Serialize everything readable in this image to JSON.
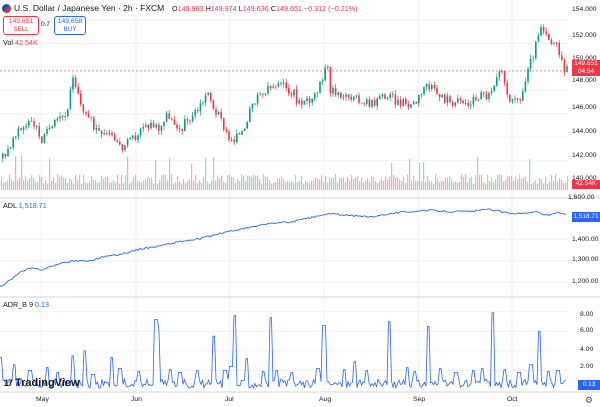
{
  "header": {
    "symbol_title": "U.S. Dollar / Japanese Yen · 2h · FXCM",
    "ohlc": {
      "o_key": "O",
      "o_val": "149.963",
      "h_key": "H",
      "h_val": "149.974",
      "l_key": "L",
      "l_val": "149.636",
      "c_key": "C",
      "c_val": "149.651",
      "change": "−0.312 (−0.21%)"
    },
    "sell": {
      "price": "149.651",
      "label": "SELL"
    },
    "buy": {
      "price": "149.658",
      "label": "BUY"
    },
    "spread": "0.7",
    "volume_label": "Vol",
    "volume_value": "42.54K"
  },
  "panes": {
    "adl": {
      "name": "ADL",
      "value": "1,518.71"
    },
    "adr": {
      "name": "ADR_B 9",
      "value": "0.13"
    }
  },
  "price_axis": {
    "ticks": [
      "154.000",
      "152.000",
      "150.000",
      "148.000",
      "146.000",
      "144.000",
      "142.000",
      "140.000",
      "1,600.00"
    ],
    "last_price": "149.651",
    "countdown": "04:54",
    "volume_tag": "42.54K"
  },
  "adl_axis": {
    "ticks": [
      "1,400.00",
      "1,300.00",
      "1,200.00"
    ],
    "tag": "1,518.71"
  },
  "adr_axis": {
    "ticks": [
      "8.00",
      "6.00",
      "4.00",
      "2.00"
    ],
    "tag": "0.13"
  },
  "time_axis": {
    "labels": [
      "May",
      "Jun",
      "Jul",
      "Aug",
      "Sep",
      "Oct"
    ]
  },
  "branding": {
    "logo_text": "TradingView",
    "logo_mark": "17"
  },
  "colors": {
    "up": "#089981",
    "down": "#f23645",
    "line": "#2962ff",
    "grid": "#eef0f3"
  },
  "chart_data": {
    "type": "candlestick",
    "price_ylim": [
      139.5,
      154.5
    ],
    "adl_ylim": [
      1150,
      1560
    ],
    "adr_ylim": [
      0,
      9
    ],
    "x_labels": [
      "May",
      "Jun",
      "Jul",
      "Aug",
      "Sep",
      "Oct"
    ],
    "price_trend": [
      [
        0,
        142.2
      ],
      [
        10,
        143.4
      ],
      [
        20,
        144.6
      ],
      [
        30,
        145.7
      ],
      [
        42,
        143.6
      ],
      [
        55,
        146.0
      ],
      [
        65,
        145.8
      ],
      [
        72,
        148.8
      ],
      [
        80,
        146.8
      ],
      [
        92,
        145.0
      ],
      [
        104,
        144.6
      ],
      [
        112,
        144.4
      ],
      [
        120,
        143.0
      ],
      [
        130,
        143.6
      ],
      [
        140,
        144.6
      ],
      [
        150,
        145.2
      ],
      [
        158,
        144.8
      ],
      [
        168,
        146.0
      ],
      [
        176,
        144.4
      ],
      [
        186,
        145.4
      ],
      [
        198,
        146.6
      ],
      [
        206,
        147.8
      ],
      [
        214,
        146.4
      ],
      [
        222,
        145.2
      ],
      [
        232,
        143.4
      ],
      [
        244,
        145.2
      ],
      [
        256,
        147.2
      ],
      [
        270,
        148.2
      ],
      [
        282,
        148.4
      ],
      [
        292,
        147.8
      ],
      [
        300,
        146.8
      ],
      [
        310,
        147.4
      ],
      [
        320,
        148.4
      ],
      [
        326,
        151.0
      ],
      [
        330,
        147.8
      ],
      [
        340,
        147.8
      ],
      [
        350,
        147.2
      ],
      [
        360,
        147.2
      ],
      [
        372,
        147.0
      ],
      [
        384,
        147.6
      ],
      [
        394,
        147.2
      ],
      [
        404,
        146.8
      ],
      [
        414,
        147.0
      ],
      [
        424,
        148.6
      ],
      [
        436,
        147.6
      ],
      [
        448,
        147.2
      ],
      [
        458,
        147.0
      ],
      [
        468,
        146.8
      ],
      [
        478,
        147.6
      ],
      [
        490,
        147.6
      ],
      [
        500,
        149.6
      ],
      [
        508,
        147.6
      ],
      [
        512,
        146.8
      ],
      [
        520,
        147.4
      ],
      [
        526,
        149.2
      ],
      [
        532,
        151.0
      ],
      [
        540,
        153.2
      ],
      [
        548,
        152.2
      ],
      [
        556,
        151.6
      ],
      [
        562,
        150.2
      ],
      [
        566,
        149.65
      ]
    ],
    "adl_trend": [
      [
        0,
        1180
      ],
      [
        10,
        1210
      ],
      [
        20,
        1245
      ],
      [
        30,
        1265
      ],
      [
        42,
        1260
      ],
      [
        55,
        1280
      ],
      [
        72,
        1300
      ],
      [
        90,
        1300
      ],
      [
        104,
        1320
      ],
      [
        120,
        1330
      ],
      [
        140,
        1355
      ],
      [
        160,
        1370
      ],
      [
        180,
        1390
      ],
      [
        198,
        1400
      ],
      [
        214,
        1420
      ],
      [
        232,
        1440
      ],
      [
        250,
        1455
      ],
      [
        270,
        1475
      ],
      [
        290,
        1480
      ],
      [
        310,
        1500
      ],
      [
        330,
        1520
      ],
      [
        350,
        1510
      ],
      [
        370,
        1505
      ],
      [
        390,
        1520
      ],
      [
        410,
        1530
      ],
      [
        430,
        1535
      ],
      [
        450,
        1530
      ],
      [
        470,
        1530
      ],
      [
        490,
        1540
      ],
      [
        505,
        1525
      ],
      [
        520,
        1520
      ],
      [
        535,
        1530
      ],
      [
        548,
        1510
      ],
      [
        556,
        1525
      ],
      [
        566,
        1518.71
      ]
    ],
    "adr_spikes": [
      [
        0,
        3.3
      ],
      [
        14,
        2.6
      ],
      [
        30,
        2.0
      ],
      [
        47,
        2.3
      ],
      [
        58,
        1.8
      ],
      [
        73,
        3.5
      ],
      [
        85,
        4.0
      ],
      [
        93,
        1.6
      ],
      [
        112,
        3.3
      ],
      [
        120,
        2.2
      ],
      [
        139,
        1.9
      ],
      [
        156,
        7.2
      ],
      [
        158,
        6.0
      ],
      [
        170,
        2.1
      ],
      [
        180,
        1.8
      ],
      [
        197,
        2.0
      ],
      [
        214,
        5.5
      ],
      [
        225,
        2.0
      ],
      [
        231,
        2.4
      ],
      [
        235,
        7.6
      ],
      [
        247,
        3.2
      ],
      [
        263,
        1.9
      ],
      [
        271,
        7.4
      ],
      [
        277,
        2.0
      ],
      [
        292,
        1.8
      ],
      [
        318,
        2.2
      ],
      [
        324,
        6.6
      ],
      [
        344,
        2.1
      ],
      [
        355,
        2.9
      ],
      [
        367,
        2.0
      ],
      [
        389,
        7.0
      ],
      [
        407,
        2.3
      ],
      [
        415,
        1.9
      ],
      [
        428,
        6.5
      ],
      [
        440,
        2.2
      ],
      [
        456,
        1.8
      ],
      [
        473,
        2.0
      ],
      [
        482,
        2.2
      ],
      [
        493,
        7.9
      ],
      [
        505,
        2.1
      ],
      [
        519,
        1.8
      ],
      [
        531,
        2.6
      ],
      [
        539,
        6.0
      ],
      [
        548,
        1.9
      ],
      [
        558,
        2.0
      ]
    ]
  }
}
